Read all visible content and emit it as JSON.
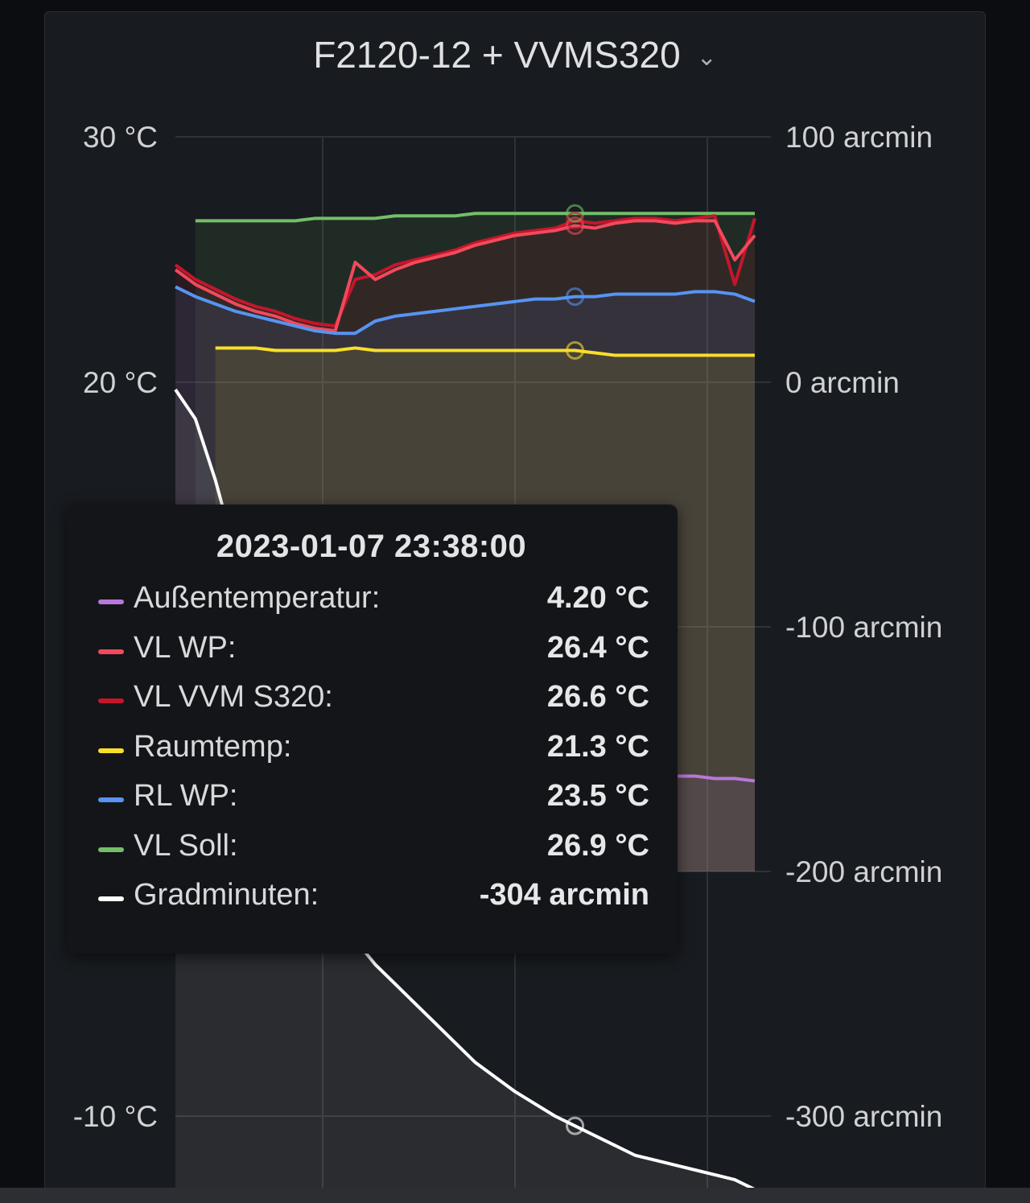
{
  "panel": {
    "title": "F2120-12 + VVMS320",
    "menu_icon": "chevron-down-icon"
  },
  "chart_data": {
    "type": "line",
    "title": "F2120-12 + VVMS320",
    "y_left": {
      "unit": "°C",
      "ticks": [
        "30 °C",
        "20 °C",
        "-10 °C"
      ],
      "tick_values": [
        30,
        20,
        -10
      ]
    },
    "y_right": {
      "unit": "arcmin",
      "ticks": [
        "100 arcmin",
        "0 arcmin",
        "-100 arcmin",
        "-200 arcmin",
        "-300 arcmin"
      ],
      "tick_values": [
        100,
        0,
        -100,
        -200,
        -300
      ]
    },
    "grid": true,
    "hover_index": 20,
    "series": [
      {
        "name": "VL Soll",
        "axis": "left",
        "color": "#73bf69",
        "fill": true,
        "start_index": 1,
        "values": [
          null,
          26.6,
          26.6,
          26.6,
          26.6,
          26.6,
          26.6,
          26.7,
          26.7,
          26.7,
          26.7,
          26.8,
          26.8,
          26.8,
          26.8,
          26.9,
          26.9,
          26.9,
          26.9,
          26.9,
          26.9,
          26.9,
          26.9,
          26.9,
          26.9,
          26.9,
          26.9,
          26.9,
          26.9,
          26.9
        ]
      },
      {
        "name": "VL VVM S320",
        "axis": "left",
        "color": "#c4162a",
        "fill": true,
        "values": [
          24.8,
          24.2,
          23.8,
          23.4,
          23.1,
          22.9,
          22.6,
          22.4,
          22.3,
          24.2,
          24.4,
          24.8,
          25.0,
          25.2,
          25.4,
          25.7,
          25.9,
          26.1,
          26.2,
          26.3,
          26.6,
          26.5,
          26.6,
          26.7,
          26.7,
          26.6,
          26.7,
          26.8,
          24.0,
          26.7
        ]
      },
      {
        "name": "VL WP",
        "axis": "left",
        "color": "#f2495c",
        "fill": false,
        "values": [
          24.6,
          24.0,
          23.6,
          23.2,
          22.9,
          22.7,
          22.4,
          22.2,
          22.1,
          24.9,
          24.2,
          24.6,
          24.9,
          25.1,
          25.3,
          25.6,
          25.8,
          26.0,
          26.1,
          26.2,
          26.4,
          26.3,
          26.5,
          26.6,
          26.6,
          26.5,
          26.6,
          26.6,
          25.0,
          26.0
        ]
      },
      {
        "name": "RL WP",
        "axis": "left",
        "color": "#5794f2",
        "fill": true,
        "values": [
          23.9,
          23.5,
          23.2,
          22.9,
          22.7,
          22.5,
          22.3,
          22.1,
          22.0,
          22.0,
          22.5,
          22.7,
          22.8,
          22.9,
          23.0,
          23.1,
          23.2,
          23.3,
          23.4,
          23.4,
          23.5,
          23.5,
          23.6,
          23.6,
          23.6,
          23.6,
          23.7,
          23.7,
          23.6,
          23.3
        ]
      },
      {
        "name": "Raumtemp",
        "axis": "left",
        "color": "#fade2a",
        "fill": true,
        "start_index": 2,
        "values": [
          null,
          null,
          21.4,
          21.4,
          21.4,
          21.3,
          21.3,
          21.3,
          21.3,
          21.4,
          21.3,
          21.3,
          21.3,
          21.3,
          21.3,
          21.3,
          21.3,
          21.3,
          21.3,
          21.3,
          21.3,
          21.2,
          21.1,
          21.1,
          21.1,
          21.1,
          21.1,
          21.1,
          21.1,
          21.1
        ]
      },
      {
        "name": "Außentemperatur",
        "axis": "left",
        "color": "#b877d9",
        "fill": true,
        "values": [
          null,
          null,
          null,
          null,
          null,
          null,
          null,
          null,
          null,
          null,
          null,
          null,
          null,
          null,
          null,
          null,
          null,
          null,
          null,
          null,
          4.2,
          4.1,
          4.1,
          4.0,
          4.0,
          3.9,
          3.9,
          3.8,
          3.8,
          3.7
        ]
      },
      {
        "name": "Gradminuten",
        "axis": "right",
        "color": "#ffffff",
        "fill": true,
        "values": [
          -3,
          -15,
          -40,
          -70,
          -100,
          -130,
          -158,
          -185,
          -210,
          -228,
          -238,
          -246,
          -254,
          -262,
          -270,
          -278,
          -284,
          -290,
          -295,
          -300,
          -304,
          -308,
          -312,
          -316,
          -318,
          -320,
          -322,
          -324,
          -326,
          -330
        ]
      }
    ]
  },
  "tooltip": {
    "time": "2023-01-07 23:38:00",
    "rows": [
      {
        "label": "Außentemperatur:",
        "value": "4.20 °C",
        "color": "#b877d9"
      },
      {
        "label": "VL WP:",
        "value": "26.4 °C",
        "color": "#f2495c"
      },
      {
        "label": "VL VVM S320:",
        "value": "26.6 °C",
        "color": "#c4162a"
      },
      {
        "label": "Raumtemp:",
        "value": "21.3 °C",
        "color": "#fade2a"
      },
      {
        "label": "RL WP:",
        "value": "23.5 °C",
        "color": "#5794f2"
      },
      {
        "label": "VL Soll:",
        "value": "26.9 °C",
        "color": "#73bf69"
      },
      {
        "label": "Gradminuten:",
        "value": "-304 arcmin",
        "color": "#ffffff"
      }
    ]
  }
}
